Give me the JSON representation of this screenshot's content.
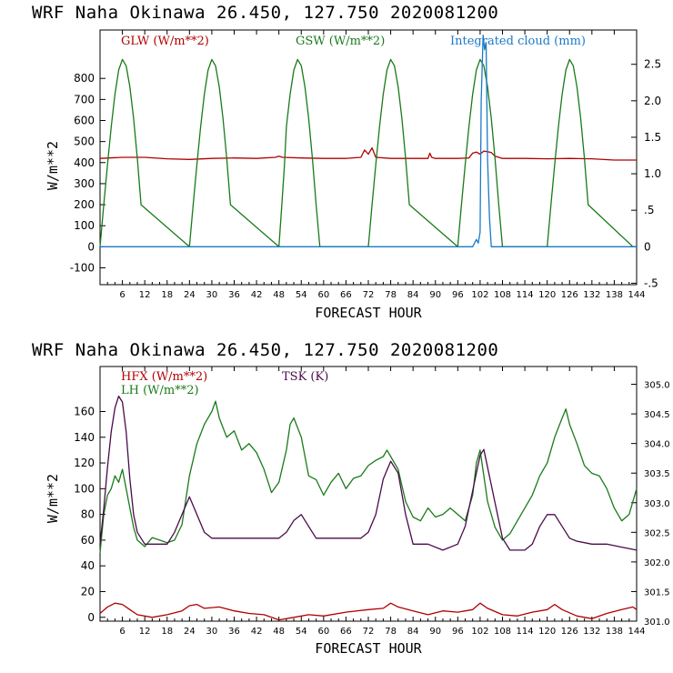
{
  "chart_data": [
    {
      "type": "line",
      "title": "WRF   Naha Okinawa  26.450, 127.750  2020081200",
      "xlabel": "FORECAST HOUR",
      "ylabel": "W/m**2",
      "xlim": [
        0,
        144
      ],
      "ylim": [
        -180,
        1030
      ],
      "y2lim": [
        -0.52,
        2.97
      ],
      "x_ticks": [
        6,
        12,
        18,
        24,
        30,
        36,
        42,
        48,
        54,
        60,
        66,
        72,
        78,
        84,
        90,
        96,
        102,
        108,
        114,
        120,
        126,
        132,
        138,
        144
      ],
      "y_ticks": [
        -100,
        0,
        100,
        200,
        300,
        400,
        500,
        600,
        700,
        800
      ],
      "y2_ticks": [
        -0.5,
        0,
        0.5,
        1.0,
        1.5,
        2.0,
        2.5
      ],
      "y2_tick_labels": [
        "-.5",
        "0",
        ".5",
        "1.0",
        "1.5",
        "2.0",
        "2.5"
      ],
      "series": [
        {
          "name": "GLW (W/m**2)",
          "axis": "left",
          "color": "#b00000",
          "x": [
            0,
            6,
            12,
            18,
            24,
            30,
            36,
            42,
            47,
            48,
            49,
            54,
            60,
            66,
            70,
            71,
            72,
            73,
            74,
            78,
            84,
            88,
            88.5,
            89,
            90,
            96,
            99,
            100,
            101,
            102,
            103,
            104,
            105,
            106,
            108,
            114,
            120,
            126,
            132,
            138,
            144
          ],
          "values": [
            420,
            425,
            425,
            418,
            415,
            420,
            422,
            420,
            425,
            430,
            425,
            422,
            420,
            420,
            425,
            460,
            440,
            470,
            425,
            420,
            420,
            420,
            445,
            425,
            420,
            420,
            422,
            445,
            450,
            440,
            455,
            452,
            448,
            430,
            420,
            420,
            418,
            420,
            418,
            412,
            412
          ]
        },
        {
          "name": "GSW (W/m**2)",
          "axis": "left",
          "color": "#1a7a1a",
          "x": [
            0,
            1,
            2,
            3,
            4,
            5,
            6,
            7,
            8,
            9,
            10,
            11,
            24,
            25,
            26,
            27,
            28,
            29,
            30,
            31,
            32,
            33,
            34,
            35,
            48,
            48.8,
            49.5,
            50,
            51,
            52,
            53,
            54,
            55,
            56,
            57,
            58,
            59,
            72,
            73,
            74,
            75,
            76,
            77,
            78,
            79,
            80,
            81,
            82,
            83,
            96,
            97,
            98,
            99,
            100,
            101,
            102,
            103,
            104,
            105,
            106,
            107,
            108,
            120,
            121,
            122,
            123,
            124,
            125,
            126,
            127,
            128,
            129,
            130,
            131,
            143,
            144
          ],
          "values": [
            0,
            200,
            390,
            570,
            725,
            840,
            890,
            860,
            760,
            610,
            420,
            200,
            0,
            200,
            390,
            570,
            725,
            840,
            890,
            860,
            760,
            610,
            420,
            200,
            0,
            200,
            390,
            570,
            725,
            840,
            890,
            860,
            760,
            610,
            420,
            200,
            0,
            0,
            200,
            390,
            570,
            725,
            840,
            890,
            860,
            760,
            610,
            420,
            200,
            0,
            200,
            390,
            570,
            725,
            840,
            890,
            860,
            760,
            610,
            420,
            200,
            0,
            0,
            200,
            390,
            570,
            725,
            840,
            890,
            860,
            760,
            610,
            420,
            200,
            0,
            0
          ]
        },
        {
          "name": "Integrated cloud (mm)",
          "axis": "right",
          "color": "#1a7ac8",
          "x": [
            0,
            100,
            101,
            101.5,
            102,
            102.3,
            102.8,
            103.2,
            103.6,
            104,
            104.5,
            105,
            144
          ],
          "values": [
            0,
            0,
            0.1,
            0.05,
            0.2,
            2.0,
            2.9,
            2.7,
            2.8,
            1.2,
            0.4,
            0,
            0
          ]
        }
      ]
    },
    {
      "type": "line",
      "title": "WRF   Naha Okinawa  26.450, 127.750  2020081200",
      "xlabel": "FORECAST HOUR",
      "ylabel": "W/m**2",
      "xlim": [
        0,
        144
      ],
      "ylim": [
        -3,
        195
      ],
      "y2lim": [
        301.0,
        305.3
      ],
      "x_ticks": [
        6,
        12,
        18,
        24,
        30,
        36,
        42,
        48,
        54,
        60,
        66,
        72,
        78,
        84,
        90,
        96,
        102,
        108,
        114,
        120,
        126,
        132,
        138,
        144
      ],
      "y_ticks": [
        0,
        20,
        40,
        60,
        80,
        100,
        120,
        140,
        160
      ],
      "y2_ticks": [
        301.0,
        301.5,
        302.0,
        302.5,
        303.0,
        303.5,
        304.0,
        304.5,
        305.0
      ],
      "series": [
        {
          "name": "HFX (W/m**2)",
          "axis": "left",
          "color": "#b00000",
          "x": [
            0,
            2,
            4,
            6,
            8,
            10,
            14,
            18,
            22,
            24,
            26,
            28,
            32,
            36,
            40,
            44,
            48,
            52,
            56,
            60,
            66,
            72,
            76,
            78,
            80,
            84,
            88,
            92,
            96,
            100,
            102,
            104,
            108,
            112,
            116,
            120,
            122,
            124,
            128,
            132,
            136,
            140,
            143,
            144
          ],
          "values": [
            3,
            8,
            11,
            10,
            6,
            2,
            0,
            2,
            5,
            9,
            10,
            7,
            8,
            5,
            3,
            2,
            -2,
            0,
            2,
            1,
            4,
            6,
            7,
            11,
            8,
            5,
            2,
            5,
            4,
            6,
            11,
            7,
            2,
            1,
            4,
            6,
            10,
            6,
            1,
            -1,
            3,
            6,
            8,
            6
          ]
        },
        {
          "name": "LH  (W/m**2)",
          "axis": "left",
          "color": "#1a7a1a",
          "x": [
            0,
            1,
            2,
            3,
            4,
            5,
            6,
            7,
            8,
            9,
            10,
            12,
            14,
            16,
            18,
            20,
            22,
            24,
            26,
            28,
            30,
            31,
            32,
            34,
            36,
            38,
            40,
            42,
            44,
            46,
            48,
            50,
            51,
            52,
            54,
            56,
            58,
            60,
            62,
            64,
            66,
            68,
            70,
            72,
            74,
            76,
            77,
            78,
            80,
            82,
            84,
            86,
            88,
            90,
            92,
            94,
            96,
            98,
            100,
            101,
            102,
            103,
            104,
            106,
            108,
            110,
            112,
            114,
            116,
            118,
            120,
            122,
            124,
            125,
            126,
            128,
            130,
            132,
            134,
            136,
            138,
            140,
            142,
            144
          ],
          "values": [
            50,
            80,
            95,
            100,
            110,
            105,
            115,
            100,
            85,
            70,
            60,
            55,
            62,
            60,
            58,
            60,
            72,
            110,
            135,
            150,
            160,
            168,
            155,
            140,
            145,
            130,
            135,
            128,
            115,
            97,
            105,
            130,
            150,
            155,
            140,
            110,
            107,
            95,
            105,
            112,
            100,
            108,
            110,
            118,
            122,
            125,
            130,
            125,
            115,
            90,
            78,
            75,
            85,
            78,
            80,
            85,
            80,
            75,
            95,
            120,
            130,
            110,
            90,
            70,
            60,
            65,
            75,
            85,
            95,
            110,
            120,
            140,
            155,
            162,
            150,
            135,
            118,
            112,
            110,
            100,
            85,
            75,
            80,
            100
          ]
        },
        {
          "name": "TSK (K)",
          "axis": "right",
          "color": "#4a0a4a",
          "x": [
            0,
            1,
            2,
            3,
            4,
            5,
            6,
            7,
            8,
            9,
            10,
            12,
            14,
            16,
            18,
            20,
            22,
            24,
            26,
            28,
            30,
            32,
            36,
            40,
            44,
            48,
            50,
            52,
            54,
            56,
            58,
            62,
            66,
            70,
            72,
            74,
            76,
            78,
            80,
            82,
            84,
            88,
            92,
            96,
            98,
            100,
            102,
            103,
            104,
            106,
            108,
            110,
            112,
            114,
            116,
            118,
            120,
            122,
            124,
            126,
            128,
            132,
            136,
            140,
            144
          ],
          "values": [
            302.3,
            302.9,
            303.6,
            304.2,
            304.6,
            304.8,
            304.7,
            304.2,
            303.4,
            302.8,
            302.5,
            302.3,
            302.3,
            302.3,
            302.3,
            302.5,
            302.8,
            303.1,
            302.8,
            302.5,
            302.4,
            302.4,
            302.4,
            302.4,
            302.4,
            302.4,
            302.5,
            302.7,
            302.8,
            302.6,
            302.4,
            302.4,
            302.4,
            302.4,
            302.5,
            302.8,
            303.4,
            303.7,
            303.5,
            302.8,
            302.3,
            302.3,
            302.2,
            302.3,
            302.6,
            303.2,
            303.8,
            303.9,
            303.6,
            303.0,
            302.4,
            302.2,
            302.2,
            302.2,
            302.3,
            302.6,
            302.8,
            302.8,
            302.6,
            302.4,
            302.35,
            302.3,
            302.3,
            302.25,
            302.2
          ]
        }
      ]
    }
  ]
}
